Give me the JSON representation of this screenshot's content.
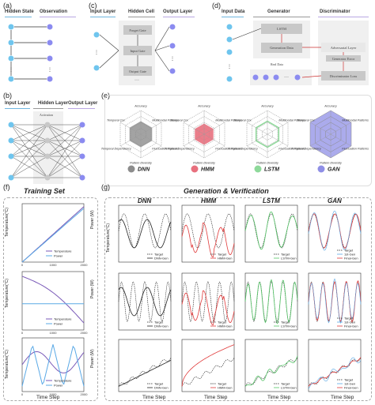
{
  "panels": {
    "a": {
      "letter": "(a)",
      "hidden": "Hidden State",
      "obs": "Observation",
      "h": [
        "I₁",
        "I₂",
        "I₃",
        "Iₙ"
      ],
      "o": [
        "O₁",
        "O₂",
        "O₃",
        "Oₙ"
      ]
    },
    "b": {
      "letter": "(b)",
      "input": "Input Layer",
      "hidden": "Hidden Layer",
      "output": "Output Layer",
      "activation": "Activation",
      "i": [
        "I₁",
        "I₂",
        "I₃",
        "Iₙ"
      ],
      "o": [
        "O₁",
        "O₂",
        "O₃",
        "Oₙ"
      ]
    },
    "c": {
      "letter": "(c)",
      "input": "Input Layer",
      "hidden": "Hidden Cell",
      "output": "Output Layer",
      "gates": [
        "Forget Gate",
        "Input Gate",
        "Output Gate"
      ],
      "dots": "···",
      "i": [
        "I₁",
        "Iₙ"
      ],
      "o": [
        "O₁",
        "O₂",
        "Oₙ"
      ]
    },
    "d": {
      "letter": "(d)",
      "input": "Input Data",
      "generator": "Generator",
      "discriminator": "Discriminator",
      "lstm": "LSTM",
      "gen_data": "Generation Data",
      "real": "Real Data",
      "adv": "Adversarial Layer",
      "gen_error": "Generator Error",
      "disc_loss": "Discriminator Loss",
      "dots": "···",
      "i": [
        "I₁",
        "Iₙ"
      ]
    },
    "e": {
      "letter": "(e)",
      "axes": [
        "Accuracy",
        "Multimodal Patterns",
        "Fluctuation Patterns",
        "Pattern Diversity",
        "Temporal Dependency",
        "Temporal Cor."
      ],
      "models": [
        "DNN",
        "HMM",
        "LSTM",
        "GAN"
      ],
      "colors": [
        "#8c8c8c",
        "#e8707e",
        "#8ed99a",
        "#8f8fe6"
      ]
    },
    "f": {
      "letter": "(f)",
      "title": "Training Set",
      "xlabel": "Time Step",
      "ylabel": "Temperature(°C)",
      "ylabel2": "Power (W)",
      "legend": [
        "Temperature",
        "Power"
      ]
    },
    "g": {
      "letter": "(g)",
      "title": "Generation & Verification",
      "xlabel": "Time Step",
      "cols": [
        "DNN",
        "HMM",
        "LSTM",
        "GAN"
      ],
      "legends": [
        [
          "Target",
          "DNN-Gen"
        ],
        [
          "Target",
          "HMM-Gen"
        ],
        [
          "Target",
          "LSTM-Gen"
        ],
        [
          "Target",
          "1st-Gen",
          "Final-Gen"
        ]
      ],
      "gen_colors": [
        "#222",
        "#e03a3a",
        "#55c467",
        "#e03a3a"
      ]
    }
  },
  "chart_data": {
    "f": [
      {
        "type": "line",
        "x": [
          0,
          2000
        ],
        "series": [
          {
            "name": "Temperature",
            "values": [
              0,
              60
            ]
          },
          {
            "name": "Power",
            "values": [
              0,
              50
            ]
          }
        ]
      },
      {
        "type": "line",
        "x": [
          0,
          2000
        ],
        "series": [
          {
            "name": "Temperature",
            "values": [
              300,
              250
            ]
          },
          {
            "name": "Power",
            "values": [
              0,
              0
            ]
          }
        ]
      },
      {
        "type": "line",
        "x": [
          0,
          2000
        ],
        "series": [
          {
            "name": "Temperature"
          },
          {
            "name": "Power"
          }
        ]
      }
    ]
  }
}
